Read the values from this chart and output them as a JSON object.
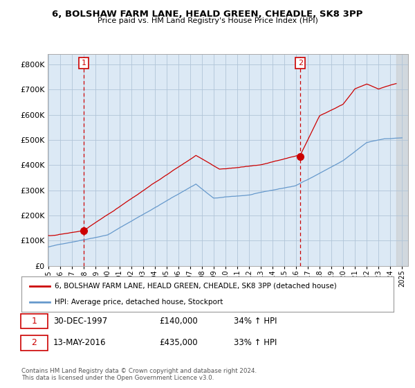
{
  "title1": "6, BOLSHAW FARM LANE, HEALD GREEN, CHEADLE, SK8 3PP",
  "title2": "Price paid vs. HM Land Registry's House Price Index (HPI)",
  "ytick_vals": [
    0,
    100000,
    200000,
    300000,
    400000,
    500000,
    600000,
    700000,
    800000
  ],
  "ylim": [
    0,
    840000
  ],
  "xlim_start": 1994.92,
  "xlim_end": 2025.5,
  "sale1_x": 1997.99,
  "sale1_y": 140000,
  "sale2_x": 2016.37,
  "sale2_y": 435000,
  "legend_line1": "6, BOLSHAW FARM LANE, HEALD GREEN, CHEADLE, SK8 3PP (detached house)",
  "legend_line2": "HPI: Average price, detached house, Stockport",
  "ann1_date": "30-DEC-1997",
  "ann1_price": "£140,000",
  "ann1_hpi": "34% ↑ HPI",
  "ann2_date": "13-MAY-2016",
  "ann2_price": "£435,000",
  "ann2_hpi": "33% ↑ HPI",
  "footer": "Contains HM Land Registry data © Crown copyright and database right 2024.\nThis data is licensed under the Open Government Licence v3.0.",
  "house_color": "#cc0000",
  "hpi_color": "#6699cc",
  "plot_bg": "#dce9f5",
  "bg_color": "#ffffff",
  "grid_color": "#b0c4d8",
  "xticks": [
    1995,
    1996,
    1997,
    1998,
    1999,
    2000,
    2001,
    2002,
    2003,
    2004,
    2005,
    2006,
    2007,
    2008,
    2009,
    2010,
    2011,
    2012,
    2013,
    2014,
    2015,
    2016,
    2017,
    2018,
    2019,
    2020,
    2021,
    2022,
    2023,
    2024,
    2025
  ]
}
